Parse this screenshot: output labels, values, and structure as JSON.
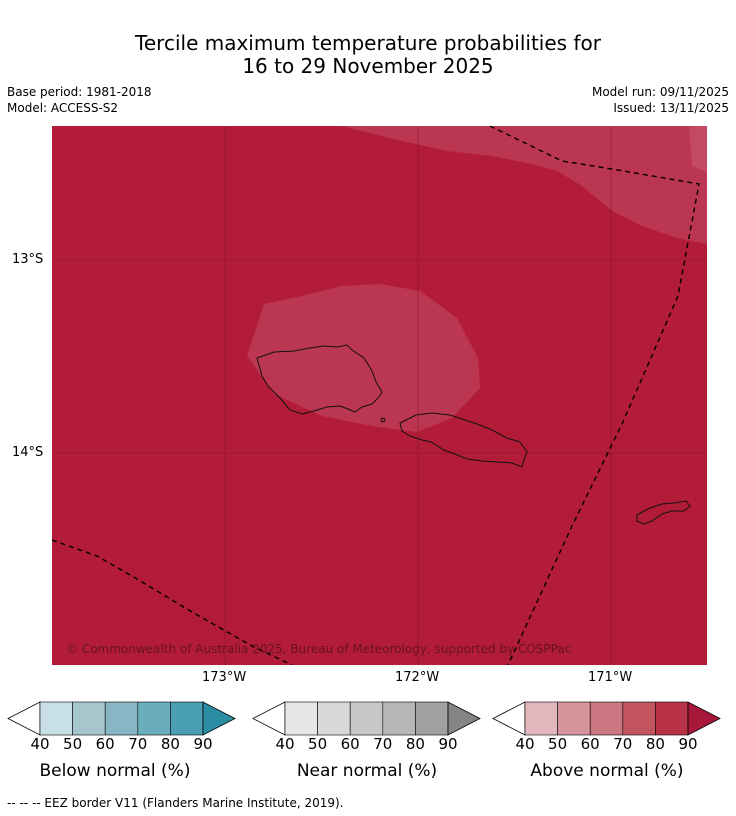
{
  "title": {
    "line1": "Tercile maximum temperature probabilities for",
    "line2": "16 to 29 November 2025"
  },
  "meta": {
    "base_period": "Base period: 1981-2018",
    "model": "Model: ACCESS-S2",
    "model_run": "Model run: 09/11/2025",
    "issued": "Issued: 13/11/2025"
  },
  "map": {
    "copyright": "© Commonwealth of Australia 2025, Bureau of Meteorology, supported by COSPPac",
    "lat_labels": [
      "13°S",
      "14°S"
    ],
    "lon_labels": [
      "173°W",
      "172°W",
      "171°W"
    ],
    "colors": {
      "above_80_90": "#b31c38",
      "above_70_80": "#bb3650",
      "coast": "#111111",
      "eez": "#000000"
    }
  },
  "chart_data": {
    "type": "heatmap",
    "variable": "Tercile maximum temperature probability",
    "period": "16 to 29 November 2025",
    "lon_range": [
      -173.9,
      -170.5
    ],
    "lat_range": [
      -15.1,
      -12.3
    ],
    "lat_ticks": [
      -13,
      -14
    ],
    "lon_ticks": [
      -173,
      -172,
      -171
    ],
    "dominant_category": "Above normal",
    "probability_regions": [
      {
        "category": "Above normal",
        "range_pct": [
          80,
          90
        ],
        "area": "most of domain"
      },
      {
        "category": "Above normal",
        "range_pct": [
          70,
          80
        ],
        "area": "around Savai'i/Upolu and north-east corner"
      }
    ],
    "colorbars": [
      {
        "label": "Below normal (%)",
        "ticks": [
          40,
          50,
          60,
          70,
          80,
          90
        ],
        "colors": [
          "#ffffff",
          "#c8e0e6",
          "#a5c6cd",
          "#88b6c4",
          "#6aaebd",
          "#4aa0b2",
          "#2b8da3"
        ]
      },
      {
        "label": "Near normal (%)",
        "ticks": [
          40,
          50,
          60,
          70,
          80,
          90
        ],
        "colors": [
          "#ffffff",
          "#e6e6e6",
          "#d8d8d8",
          "#c8c8c8",
          "#b6b6b6",
          "#a0a0a0",
          "#858585"
        ]
      },
      {
        "label": "Above normal (%)",
        "ticks": [
          40,
          50,
          60,
          70,
          80,
          90
        ],
        "colors": [
          "#ffffff",
          "#e2b8be",
          "#d6949d",
          "#cb7680",
          "#c2555f",
          "#b83248",
          "#a8183a"
        ]
      }
    ]
  },
  "footnote": "--  --  -- EEZ border V11 (Flanders Marine Institute, 2019)."
}
